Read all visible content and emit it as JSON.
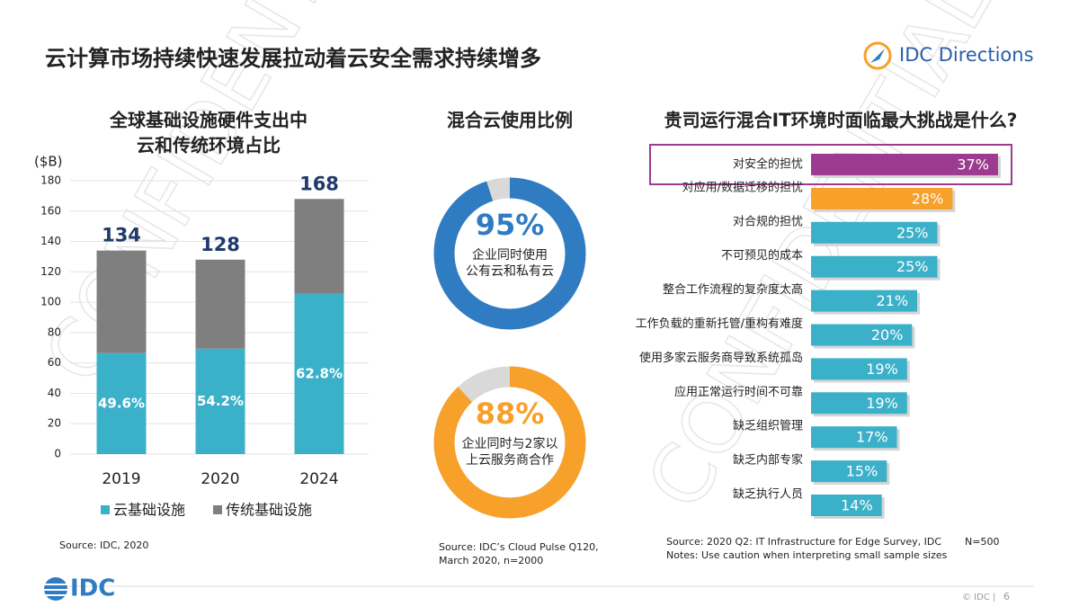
{
  "header": {
    "title": "云计算市场持续快速发展拉动着云安全需求持续增多",
    "brand": "IDC Directions"
  },
  "footer": {
    "logo": "IDC",
    "copyright": "© IDC |",
    "page": "6"
  },
  "chart_data": [
    {
      "type": "stacked-bar",
      "title": [
        "全球基础设施硬件支出中",
        "云和传统环境占比"
      ],
      "y_label": "($B)",
      "categories": [
        "2019",
        "2020",
        "2024"
      ],
      "series": [
        {
          "name": "云基础设施",
          "color": "#3bb0c9",
          "values": [
            66.5,
            69.4,
            105.5
          ],
          "value_labels": [
            "49.6%",
            "54.2%",
            "62.8%"
          ]
        },
        {
          "name": "传统基础设施",
          "color": "#7f7f7f",
          "values": [
            67.5,
            58.6,
            62.5
          ]
        }
      ],
      "totals": [
        134,
        128,
        168
      ],
      "ylim": [
        0,
        180
      ],
      "yticks": [
        0,
        20,
        40,
        60,
        80,
        100,
        120,
        140,
        160,
        180
      ],
      "grid": true,
      "source": "Source: IDC, 2020"
    },
    {
      "type": "donut",
      "title": "混合云使用比例",
      "values": [
        95,
        88
      ],
      "value_labels": [
        "95%",
        "88%"
      ],
      "captions": [
        [
          "企业同时使用",
          "公有云和私有云"
        ],
        [
          "企业同时与2家以",
          "上云服务商合作"
        ]
      ],
      "colors": [
        "#2f7cc3",
        "#f7a02a"
      ],
      "rest_color": "#d9d9d9",
      "source": [
        "Source: IDC’s Cloud Pulse Q120,",
        "March 2020, n=2000"
      ]
    },
    {
      "type": "hbar",
      "title": "贵司运行混合IT环境时面临最大挑战是什么?",
      "categories": [
        "对安全的担忧",
        "对应用/数据迁移的担忧",
        "对合规的担忧",
        "不可预见的成本",
        "整合工作流程的复杂度太高",
        "工作负载的重新托管/重构有难度",
        "使用多家云服务商导致系统孤岛",
        "应用正常运行时间不可靠",
        "缺乏组织管理",
        "缺乏内部专家",
        "缺乏执行人员"
      ],
      "values": [
        37,
        28,
        25,
        25,
        21,
        20,
        19,
        19,
        17,
        15,
        14
      ],
      "value_labels": [
        "37%",
        "28%",
        "25%",
        "25%",
        "21%",
        "20%",
        "19%",
        "19%",
        "17%",
        "15%",
        "14%"
      ],
      "colors": [
        "#9c3b8f",
        "#f7a02a",
        "#3bb0c9",
        "#3bb0c9",
        "#3bb0c9",
        "#3bb0c9",
        "#3bb0c9",
        "#3bb0c9",
        "#3bb0c9",
        "#3bb0c9",
        "#3bb0c9"
      ],
      "source": [
        "Source: 2020 Q2: IT Infrastructure for Edge Survey, IDC",
        "N=500",
        "Notes: Use caution when interpreting small sample sizes"
      ]
    }
  ]
}
